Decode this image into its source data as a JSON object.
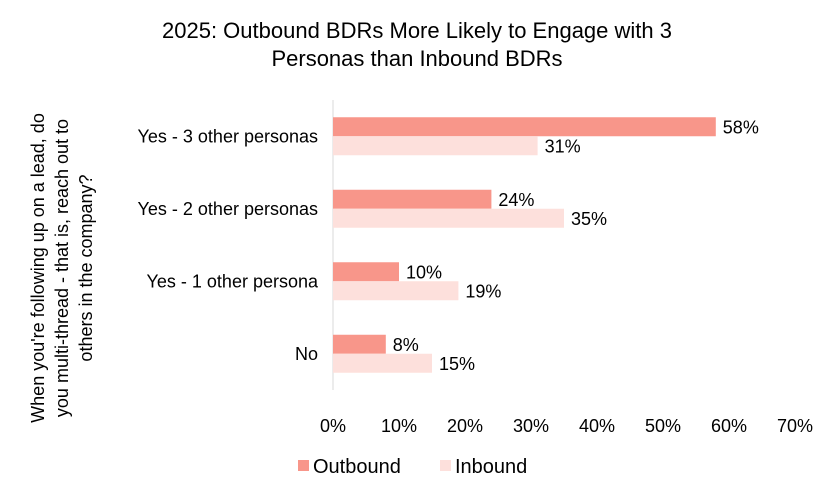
{
  "chart_data": {
    "type": "bar",
    "orientation": "horizontal",
    "title": "2025: Outbound BDRs More Likely to Engage with 3 Personas than Inbound BDRs",
    "title_lines": [
      "2025: Outbound BDRs More Likely to Engage with 3",
      "Personas than Inbound BDRs"
    ],
    "ylabel": "When you're following up on a lead, do you multi-thread - that is, reach out to others in the company?",
    "ylabel_lines": [
      "When you're following up on a lead, do",
      "you multi-thread - that is, reach out to",
      "others in the company?"
    ],
    "xlabel": "",
    "categories": [
      "Yes - 3 other personas",
      "Yes - 2 other personas",
      "Yes - 1 other persona",
      "No"
    ],
    "series": [
      {
        "name": "Outbound",
        "values": [
          58,
          24,
          10,
          8
        ],
        "color": "#f8968a"
      },
      {
        "name": "Inbound",
        "values": [
          31,
          35,
          19,
          15
        ],
        "color": "#fde0dc"
      }
    ],
    "xlim": [
      0,
      70
    ],
    "xticks": [
      0,
      10,
      20,
      30,
      40,
      50,
      60,
      70
    ],
    "value_suffix": "%",
    "grid": false,
    "legend_position": "bottom"
  }
}
